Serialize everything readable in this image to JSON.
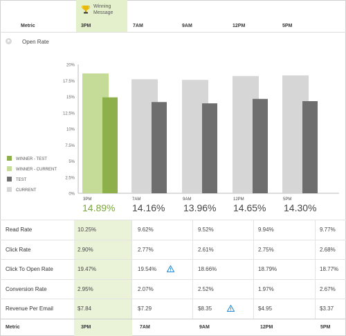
{
  "header": {
    "winning_label": "Winning Message",
    "metric_label": "Metric",
    "times": [
      "3PM",
      "7AM",
      "9AM",
      "12PM",
      "5PM"
    ]
  },
  "open_rate": {
    "label": "Open Rate"
  },
  "chart_data": {
    "type": "bar",
    "categories": [
      "3PM",
      "7AM",
      "9AM",
      "12PM",
      "5PM"
    ],
    "series": [
      {
        "name": "CURRENT",
        "values": [
          18.6,
          17.7,
          17.6,
          18.2,
          18.3
        ]
      },
      {
        "name": "TEST",
        "values": [
          14.89,
          14.16,
          13.96,
          14.65,
          14.3
        ]
      }
    ],
    "winner_category": "3PM",
    "yticks": [
      "20%",
      "17.5%",
      "15%",
      "12.5%",
      "10%",
      "7.5%",
      "5%",
      "2.5%",
      "0%"
    ],
    "ylim": [
      0,
      20
    ],
    "legend": [
      "WINNER - TEST",
      "WINNER - CURRENT",
      "TEST",
      "CURRENT"
    ],
    "big_values": [
      "14.89%",
      "14.16%",
      "13.96%",
      "14.65%",
      "14.30%"
    ],
    "colors": {
      "winner_test": "#8db04a",
      "winner_current": "#c5dc99",
      "test": "#6e6e6e",
      "current": "#d6d6d6",
      "winner_text": "#7aa53a"
    }
  },
  "metrics": [
    {
      "label": "Read Rate",
      "values": [
        "10.25%",
        "9.62%",
        "9.52%",
        "9.94%",
        "9.77%"
      ],
      "warn": []
    },
    {
      "label": "Click Rate",
      "values": [
        "2.90%",
        "2.77%",
        "2.61%",
        "2.75%",
        "2.68%"
      ],
      "warn": []
    },
    {
      "label": "Click To Open Rate",
      "values": [
        "19.47%",
        "19.54%",
        "18.66%",
        "18.79%",
        "18.77%"
      ],
      "warn": [
        1
      ]
    },
    {
      "label": "Conversion Rate",
      "values": [
        "2.95%",
        "2.07%",
        "2.52%",
        "1.97%",
        "2.67%"
      ],
      "warn": []
    },
    {
      "label": "Revenue Per Email",
      "values": [
        "$7.84",
        "$7.29",
        "$8.35",
        "$4.95",
        "$3.37"
      ],
      "warn": [
        2
      ]
    }
  ],
  "footer": {
    "metric_label": "Metric",
    "times": [
      "3PM",
      "7AM",
      "9AM",
      "12PM",
      "5PM"
    ]
  }
}
